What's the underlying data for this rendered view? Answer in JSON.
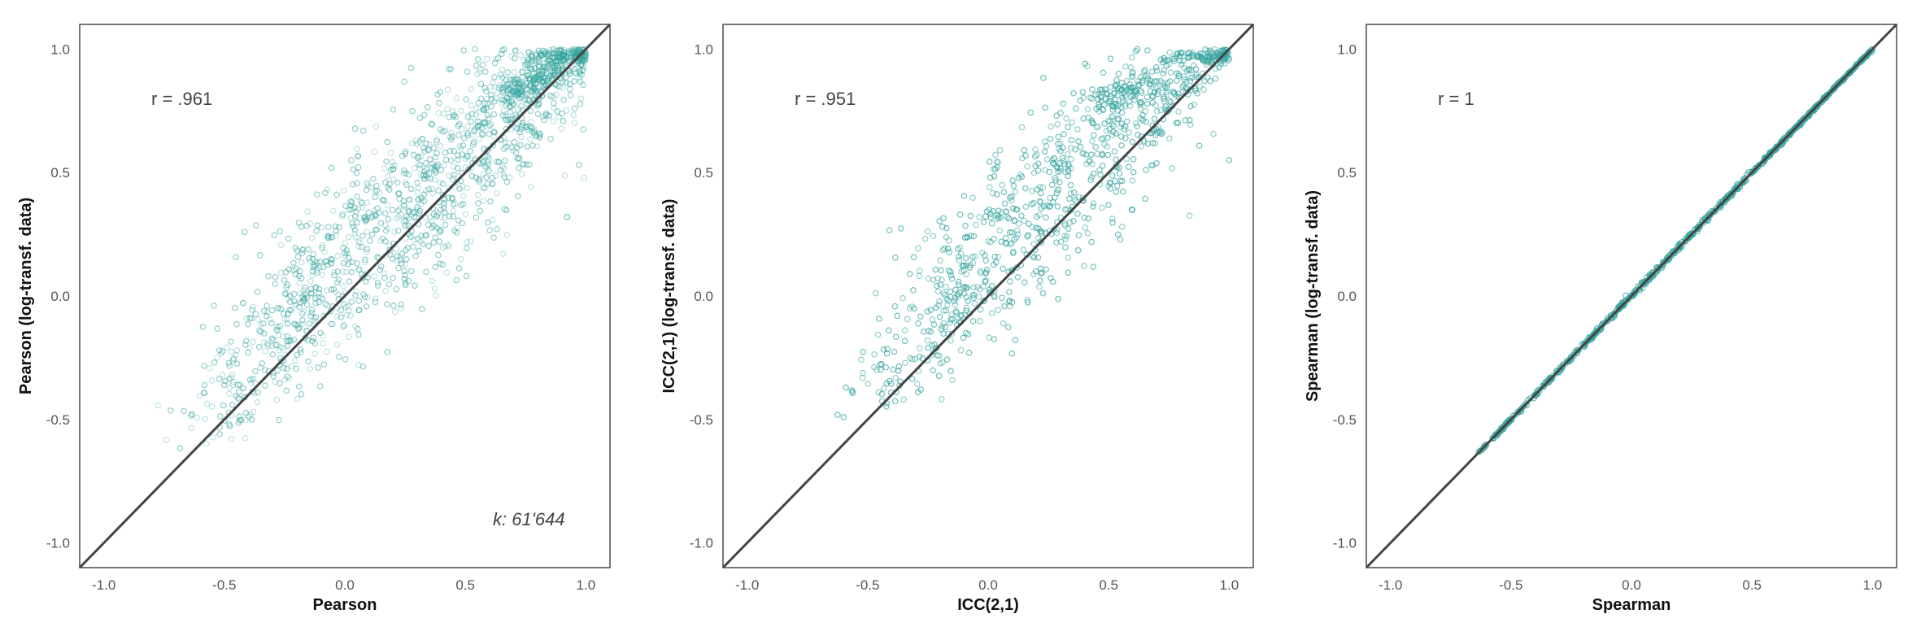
{
  "colors": {
    "points": "#3aa5a0",
    "diagonal": "#444444",
    "frame": "#555555"
  },
  "chart_data": [
    {
      "type": "scatter",
      "xlabel": "Pearson",
      "ylabel": "Pearson (log-transf. data)",
      "xlim": [
        -1.1,
        1.1
      ],
      "ylim": [
        -1.1,
        1.1
      ],
      "xticks": [
        "-1.0",
        "-0.5",
        "0.0",
        "0.5",
        "1.0"
      ],
      "yticks": [
        "-1.0",
        "-0.5",
        "0.0",
        "0.5",
        "1.0"
      ],
      "grid": false,
      "annotation": "r = .961",
      "count_label": "k: 61'644",
      "reference_line": "identity",
      "cloud": [
        {
          "x": -0.63,
          "y": -0.64
        },
        {
          "x": -0.45,
          "y": -0.43
        },
        {
          "x": -0.3,
          "y": -0.25
        },
        {
          "x": -0.15,
          "y": -0.08
        },
        {
          "x": 0.0,
          "y": 0.05
        },
        {
          "x": 0.15,
          "y": 0.18
        },
        {
          "x": 0.3,
          "y": 0.3
        },
        {
          "x": 0.45,
          "y": 0.44
        },
        {
          "x": 0.6,
          "y": 0.58
        },
        {
          "x": 0.75,
          "y": 0.74
        },
        {
          "x": 0.9,
          "y": 0.9
        },
        {
          "x": 1.0,
          "y": 1.0
        }
      ],
      "cluster": {
        "x": 0.78,
        "y": 0.86
      },
      "spread": 0.22,
      "skew_up": 0.12
    },
    {
      "type": "scatter",
      "xlabel": "ICC(2,1)",
      "ylabel": "ICC(2,1) (log-transf. data)",
      "xlim": [
        -1.1,
        1.1
      ],
      "ylim": [
        -1.1,
        1.1
      ],
      "xticks": [
        "-1.0",
        "-0.5",
        "0.0",
        "0.5",
        "1.0"
      ],
      "yticks": [
        "-1.0",
        "-0.5",
        "0.0",
        "0.5",
        "1.0"
      ],
      "grid": false,
      "annotation": "r = .951",
      "reference_line": "identity",
      "cloud": [
        {
          "x": -0.55,
          "y": -0.51
        },
        {
          "x": -0.4,
          "y": -0.38
        },
        {
          "x": -0.25,
          "y": -0.2
        },
        {
          "x": -0.1,
          "y": -0.08
        },
        {
          "x": 0.0,
          "y": 0.05
        },
        {
          "x": 0.1,
          "y": 0.18
        },
        {
          "x": 0.25,
          "y": 0.3
        },
        {
          "x": 0.4,
          "y": 0.42
        },
        {
          "x": 0.55,
          "y": 0.56
        },
        {
          "x": 0.7,
          "y": 0.7
        },
        {
          "x": 0.85,
          "y": 0.85
        },
        {
          "x": 1.0,
          "y": 1.0
        }
      ],
      "cluster": {
        "x": 0.55,
        "y": 0.82
      },
      "spread": 0.2,
      "skew_up": 0.15
    },
    {
      "type": "scatter",
      "xlabel": "Spearman",
      "ylabel": "Spearman (log-transf. data)",
      "xlim": [
        -1.1,
        1.1
      ],
      "ylim": [
        -1.1,
        1.1
      ],
      "xticks": [
        "-1.0",
        "-0.5",
        "0.0",
        "0.5",
        "1.0"
      ],
      "yticks": [
        "-1.0",
        "-0.5",
        "0.0",
        "0.5",
        "1.0"
      ],
      "grid": false,
      "annotation": "r = 1",
      "reference_line": "identity",
      "cloud": [
        {
          "x": -0.65,
          "y": -0.65
        },
        {
          "x": -0.5,
          "y": -0.5
        },
        {
          "x": -0.25,
          "y": -0.25
        },
        {
          "x": 0.0,
          "y": 0.0
        },
        {
          "x": 0.25,
          "y": 0.25
        },
        {
          "x": 0.5,
          "y": 0.5
        },
        {
          "x": 0.75,
          "y": 0.75
        },
        {
          "x": 1.0,
          "y": 1.0
        }
      ],
      "spread": 0.006,
      "skew_up": 0.0
    }
  ]
}
